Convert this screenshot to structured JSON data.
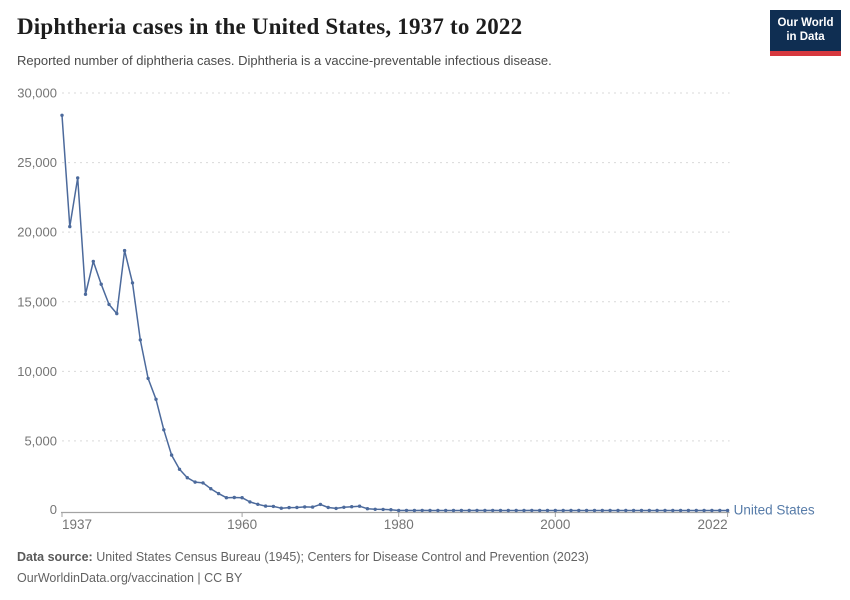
{
  "header": {
    "title": "Diphtheria cases in the United States, 1937 to 2022",
    "subtitle": "Reported number of diphtheria cases. Diphtheria is a vaccine-preventable infectious disease.",
    "logo": {
      "line1": "Our World",
      "line2": "in Data"
    }
  },
  "footer": {
    "source_label": "Data source:",
    "source_text": " United States Census Bureau (1945); Centers for Disease Control and Prevention (2023)",
    "note_text": "OurWorldinData.org/vaccination | CC BY"
  },
  "colors": {
    "line": "#4C6A9C",
    "series_label": "#577CA9",
    "grid": "#d9d9d9",
    "axis": "#a3a3a3",
    "tick_label": "#757575",
    "logo_bg": "#0F2E52",
    "logo_red": "#D6383E"
  },
  "chart_data": {
    "type": "line",
    "title": "Diphtheria cases in the United States, 1937 to 2022",
    "xlabel": "",
    "ylabel": "",
    "xlim": [
      1937,
      2022
    ],
    "ylim": [
      0,
      30000
    ],
    "yticks": [
      0,
      5000,
      10000,
      15000,
      20000,
      25000,
      30000
    ],
    "ytick_labels": [
      "0",
      "5,000",
      "10,000",
      "15,000",
      "20,000",
      "25,000",
      "30,000"
    ],
    "xticks": [
      1937,
      1960,
      1980,
      2000,
      2022
    ],
    "xtick_labels": [
      "1937",
      "1960",
      "1980",
      "2000",
      "2022"
    ],
    "grid": "horizontal-dashed",
    "legend": "series-label-at-line-end",
    "series": [
      {
        "name": "United States",
        "years": [
          1937,
          1938,
          1939,
          1940,
          1941,
          1942,
          1943,
          1944,
          1945,
          1946,
          1947,
          1948,
          1949,
          1950,
          1951,
          1952,
          1953,
          1954,
          1955,
          1956,
          1957,
          1958,
          1959,
          1960,
          1961,
          1962,
          1963,
          1964,
          1965,
          1966,
          1967,
          1968,
          1969,
          1970,
          1971,
          1972,
          1973,
          1974,
          1975,
          1976,
          1977,
          1978,
          1979,
          1980,
          1981,
          1982,
          1983,
          1984,
          1985,
          1986,
          1987,
          1988,
          1989,
          1990,
          1991,
          1992,
          1993,
          1994,
          1995,
          1996,
          1997,
          1998,
          1999,
          2000,
          2001,
          2002,
          2003,
          2004,
          2005,
          2006,
          2007,
          2008,
          2009,
          2010,
          2011,
          2012,
          2013,
          2014,
          2015,
          2016,
          2017,
          2018,
          2019,
          2020,
          2021,
          2022
        ],
        "values": [
          28400,
          20400,
          23900,
          15536,
          17900,
          16260,
          14811,
          14150,
          18675,
          16354,
          12262,
          9493,
          7989,
          5796,
          3983,
          2960,
          2355,
          2041,
          1984,
          1568,
          1211,
          918,
          934,
          918,
          617,
          444,
          314,
          293,
          164,
          209,
          219,
          260,
          241,
          435,
          215,
          152,
          228,
          272,
          307,
          128,
          84,
          76,
          59,
          3,
          5,
          2,
          5,
          1,
          3,
          0,
          3,
          2,
          3,
          4,
          2,
          4,
          0,
          2,
          0,
          2,
          4,
          1,
          1,
          1,
          2,
          1,
          1,
          0,
          0,
          0,
          0,
          0,
          0,
          0,
          0,
          1,
          0,
          1,
          0,
          0,
          0,
          1,
          2,
          0,
          0,
          0
        ]
      }
    ]
  }
}
